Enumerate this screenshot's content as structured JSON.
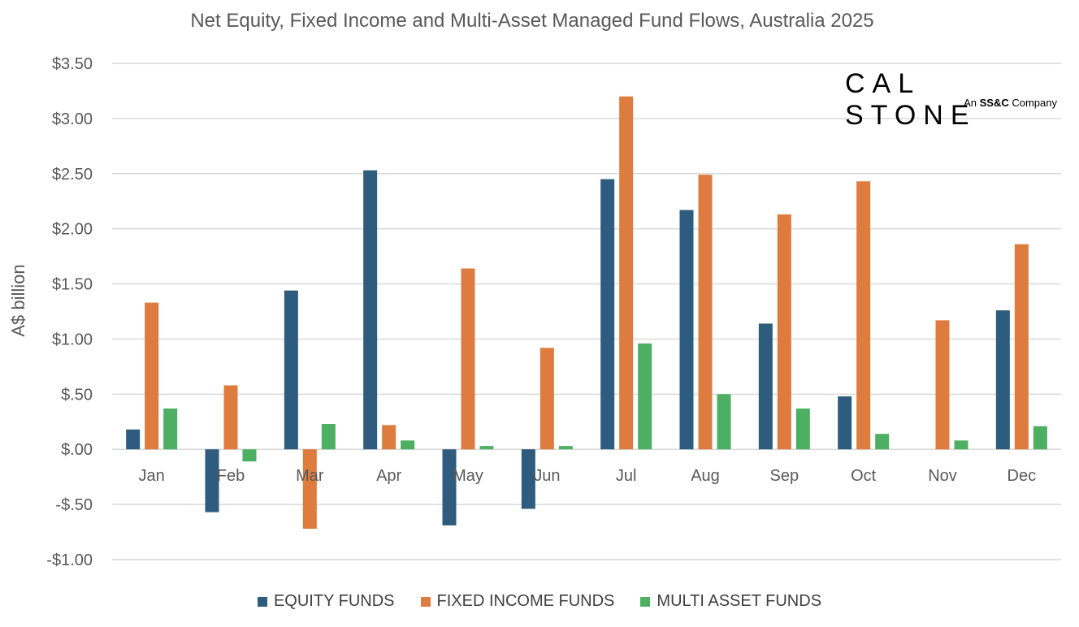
{
  "colors": {
    "equity": "#2E5C7E",
    "fixed_income": "#DE7B3E",
    "multi_asset": "#4DAF62",
    "grid": "#D9D9D9",
    "text": "#595959"
  },
  "logo": {
    "word": "CAL STONE",
    "sub_prefix": "An",
    "sub_bold": "SS&C",
    "sub_suffix": "Company"
  },
  "chart_data": {
    "type": "bar",
    "title": "Net Equity, Fixed Income and Multi-Asset Managed Fund Flows, Australia 2025",
    "ylabel": "A$ billion",
    "xlabel": "",
    "ylim": [
      -1.0,
      3.5
    ],
    "yticks": [
      3.5,
      3.0,
      2.5,
      2.0,
      1.5,
      1.0,
      0.5,
      0.0,
      -0.5,
      -1.0
    ],
    "ytick_labels": [
      "$3.50",
      "$3.00",
      "$2.50",
      "$2.00",
      "$1.50",
      "$1.00",
      "$.50",
      "$.00",
      "-$.50",
      "-$1.00"
    ],
    "grid": true,
    "legend_position": "bottom",
    "categories": [
      "Jan",
      "Feb",
      "Mar",
      "Apr",
      "May",
      "Jun",
      "Jul",
      "Aug",
      "Sep",
      "Oct",
      "Nov",
      "Dec"
    ],
    "series": [
      {
        "name": "EQUITY FUNDS",
        "color_key": "equity",
        "values": [
          0.18,
          -0.57,
          1.44,
          2.53,
          -0.69,
          -0.54,
          2.45,
          2.17,
          1.14,
          0.48,
          0.0,
          1.26
        ]
      },
      {
        "name": "FIXED INCOME FUNDS",
        "color_key": "fixed_income",
        "values": [
          1.33,
          0.58,
          -0.72,
          0.22,
          1.64,
          0.92,
          3.2,
          2.49,
          2.13,
          2.43,
          1.17,
          1.86
        ]
      },
      {
        "name": "MULTI ASSET FUNDS",
        "color_key": "multi_asset",
        "values": [
          0.37,
          -0.11,
          0.23,
          0.08,
          0.03,
          0.03,
          0.96,
          0.5,
          0.37,
          0.14,
          0.08,
          0.21
        ]
      }
    ]
  }
}
